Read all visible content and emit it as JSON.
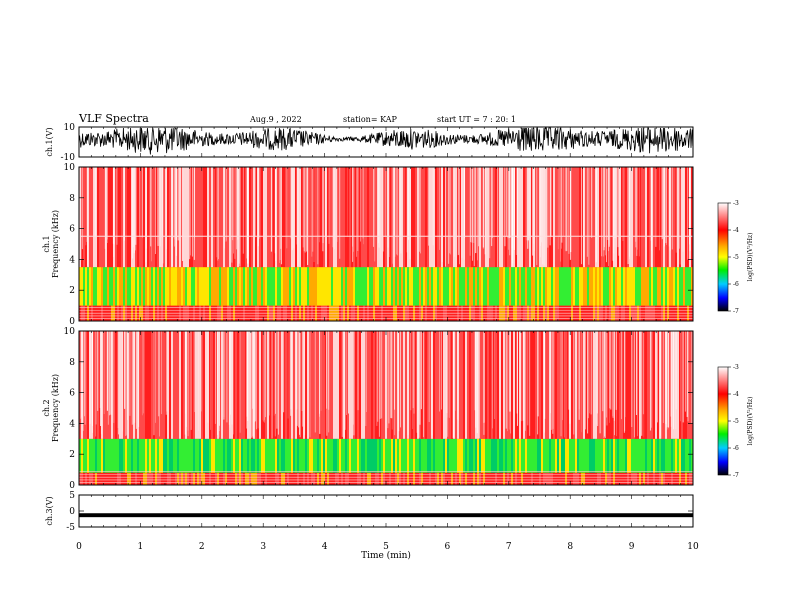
{
  "header": {
    "title": "VLF Spectra",
    "date": "Aug.9 , 2022",
    "station": "station= KAP",
    "start": "start UT = 7 : 20: 1"
  },
  "chart_data": [
    {
      "type": "line",
      "ylabel": "ch.1(V)",
      "ylim": [
        -10,
        10
      ],
      "yticks": [
        "10",
        "-10"
      ],
      "xlim": [
        0,
        10
      ],
      "description_color": "#000000"
    },
    {
      "type": "heatmap",
      "ylabel": "Frequency (kHz)",
      "channel_label": "ch.1",
      "ylim": [
        0,
        10
      ],
      "yticks": [
        "0",
        "2",
        "4",
        "6",
        "8",
        "10"
      ],
      "xlim": [
        0,
        10
      ],
      "colorbar": {
        "label": "log(PSD)(V²/Hz)",
        "ticks": [
          "-3",
          "-4",
          "-5",
          "-6",
          "-7"
        ],
        "range": [
          -7,
          -3
        ]
      },
      "bands": [
        {
          "from_khz": 0.0,
          "to_khz": 1.0,
          "level": -4.0
        },
        {
          "from_khz": 1.0,
          "to_khz": 3.5,
          "level": -4.9
        },
        {
          "from_khz": 3.5,
          "to_khz": 10.0,
          "level": -3.6
        }
      ],
      "line_khz": 5.5
    },
    {
      "type": "heatmap",
      "ylabel": "Frequency (kHz)",
      "channel_label": "ch.2",
      "ylim": [
        0,
        10
      ],
      "yticks": [
        "0",
        "2",
        "4",
        "6",
        "8",
        "10"
      ],
      "xlim": [
        0,
        10
      ],
      "colorbar": {
        "label": "log(PSD)(V²/Hz)",
        "ticks": [
          "-3",
          "-4",
          "-5",
          "-6",
          "-7"
        ],
        "range": [
          -7,
          -3
        ]
      },
      "bands": [
        {
          "from_khz": 0.0,
          "to_khz": 0.8,
          "level": -4.0
        },
        {
          "from_khz": 0.8,
          "to_khz": 3.0,
          "level": -5.3
        },
        {
          "from_khz": 3.0,
          "to_khz": 10.0,
          "level": -3.6
        }
      ]
    },
    {
      "type": "line",
      "ylabel": "ch.3(V)",
      "ylim": [
        -5,
        5
      ],
      "yticks": [
        "5",
        "0",
        "-5"
      ],
      "xlim": [
        0,
        10
      ],
      "xlabel": "Time (min)",
      "xticks": [
        "0",
        "1",
        "2",
        "3",
        "4",
        "5",
        "6",
        "7",
        "8",
        "9",
        "10"
      ]
    }
  ],
  "colors": {
    "spectrogram_base": "#ff3b3b",
    "spectrogram_light": "#ffd0d0",
    "band_yellow": "#ffe600",
    "band_green": "#33ee33",
    "trace": "#000000"
  }
}
